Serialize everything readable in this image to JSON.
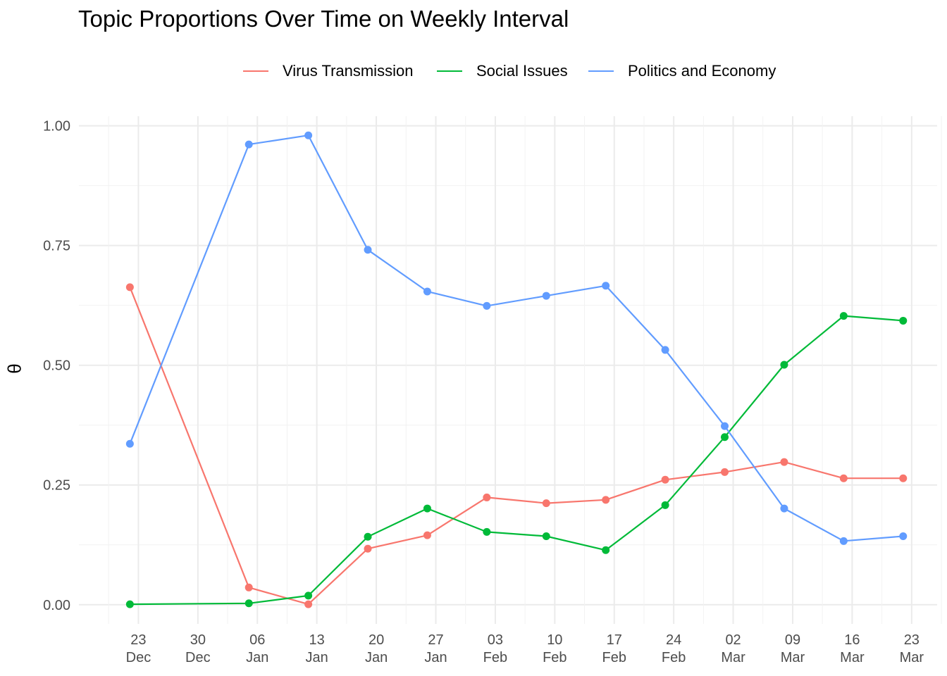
{
  "chart_data": {
    "type": "line",
    "title": "Topic Proportions Over Time on Weekly Interval",
    "xlabel": "",
    "ylabel": "θ",
    "ylim": [
      -0.04,
      1.02
    ],
    "xlim": [
      "2019-12-16",
      "2020-03-26"
    ],
    "x_ticks": [
      {
        "date": "2019-12-23",
        "day": "23",
        "month": "Dec"
      },
      {
        "date": "2019-12-30",
        "day": "30",
        "month": "Dec"
      },
      {
        "date": "2020-01-06",
        "day": "06",
        "month": "Jan"
      },
      {
        "date": "2020-01-13",
        "day": "13",
        "month": "Jan"
      },
      {
        "date": "2020-01-20",
        "day": "20",
        "month": "Jan"
      },
      {
        "date": "2020-01-27",
        "day": "27",
        "month": "Jan"
      },
      {
        "date": "2020-02-03",
        "day": "03",
        "month": "Feb"
      },
      {
        "date": "2020-02-10",
        "day": "10",
        "month": "Feb"
      },
      {
        "date": "2020-02-17",
        "day": "17",
        "month": "Feb"
      },
      {
        "date": "2020-02-24",
        "day": "24",
        "month": "Feb"
      },
      {
        "date": "2020-03-02",
        "day": "02",
        "month": "Mar"
      },
      {
        "date": "2020-03-09",
        "day": "09",
        "month": "Mar"
      },
      {
        "date": "2020-03-16",
        "day": "16",
        "month": "Mar"
      },
      {
        "date": "2020-03-23",
        "day": "23",
        "month": "Mar"
      }
    ],
    "y_ticks": [
      {
        "value": 0.0,
        "label": "0.00"
      },
      {
        "value": 0.25,
        "label": "0.25"
      },
      {
        "value": 0.5,
        "label": "0.50"
      },
      {
        "value": 0.75,
        "label": "0.75"
      },
      {
        "value": 1.0,
        "label": "1.00"
      }
    ],
    "grid": true,
    "legend_position": "top",
    "x": [
      "2019-12-22",
      "2020-01-05",
      "2020-01-12",
      "2020-01-19",
      "2020-01-26",
      "2020-02-02",
      "2020-02-09",
      "2020-02-16",
      "2020-02-23",
      "2020-03-01",
      "2020-03-08",
      "2020-03-15",
      "2020-03-22"
    ],
    "series": [
      {
        "name": "Virus Transmission",
        "color": "#F8766D",
        "values": [
          0.663,
          0.036,
          0.001,
          0.117,
          0.145,
          0.224,
          0.212,
          0.219,
          0.261,
          0.277,
          0.298,
          0.264,
          0.264
        ]
      },
      {
        "name": "Social Issues",
        "color": "#00BA38",
        "values": [
          0.001,
          0.003,
          0.019,
          0.142,
          0.201,
          0.152,
          0.143,
          0.114,
          0.208,
          0.35,
          0.501,
          0.603,
          0.593
        ]
      },
      {
        "name": "Politics and Economy",
        "color": "#619CFF",
        "values": [
          0.336,
          0.961,
          0.98,
          0.741,
          0.654,
          0.624,
          0.645,
          0.666,
          0.532,
          0.373,
          0.201,
          0.133,
          0.143
        ]
      }
    ]
  }
}
